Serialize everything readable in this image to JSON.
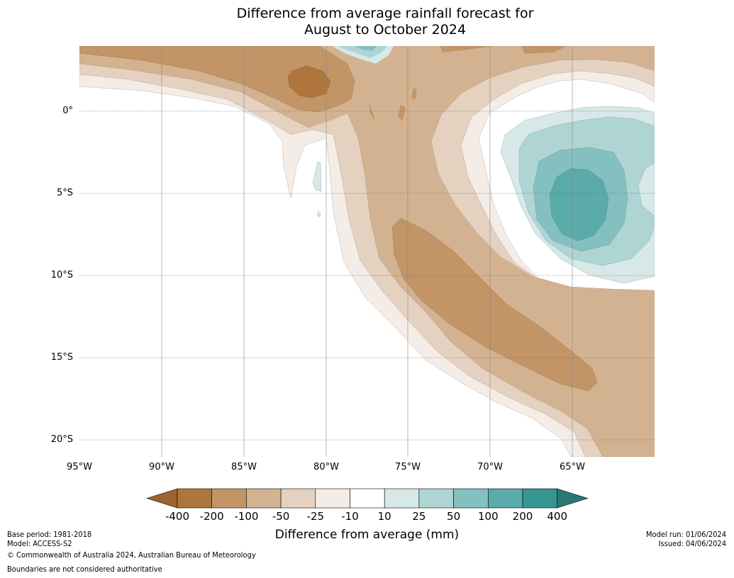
{
  "title": {
    "line1": "Difference from average rainfall forecast for",
    "line2": "August to October 2024"
  },
  "map": {
    "lat_labels": [
      "0°",
      "5°S",
      "10°S",
      "15°S",
      "20°S"
    ],
    "lon_labels": [
      "95°W",
      "90°W",
      "85°W",
      "80°W",
      "75°W",
      "70°W",
      "65°W"
    ]
  },
  "colorbar": {
    "label": "Difference from average (mm)",
    "ticks": [
      "-400",
      "-200",
      "-100",
      "-50",
      "-25",
      "-10",
      "10",
      "25",
      "50",
      "100",
      "200",
      "400"
    ],
    "colors": [
      "#9c6330",
      "#ae763c",
      "#c29466",
      "#d3b291",
      "#e4d1c0",
      "#f4ece6",
      "#ffffff",
      "#d6e8e7",
      "#aed5d3",
      "#84c0bf",
      "#5aaba9",
      "#35968f",
      "#2a7873"
    ]
  },
  "footer": {
    "base_period": "Base period: 1981-2018",
    "model": "Model: ACCESS-S2",
    "copyright": "© Commonwealth of Australia 2024, Australian Bureau of Meteorology",
    "boundaries": "Boundaries are not considered authoritative",
    "model_run": "Model run: 01/06/2024",
    "issued": "Issued: 04/06/2024"
  }
}
